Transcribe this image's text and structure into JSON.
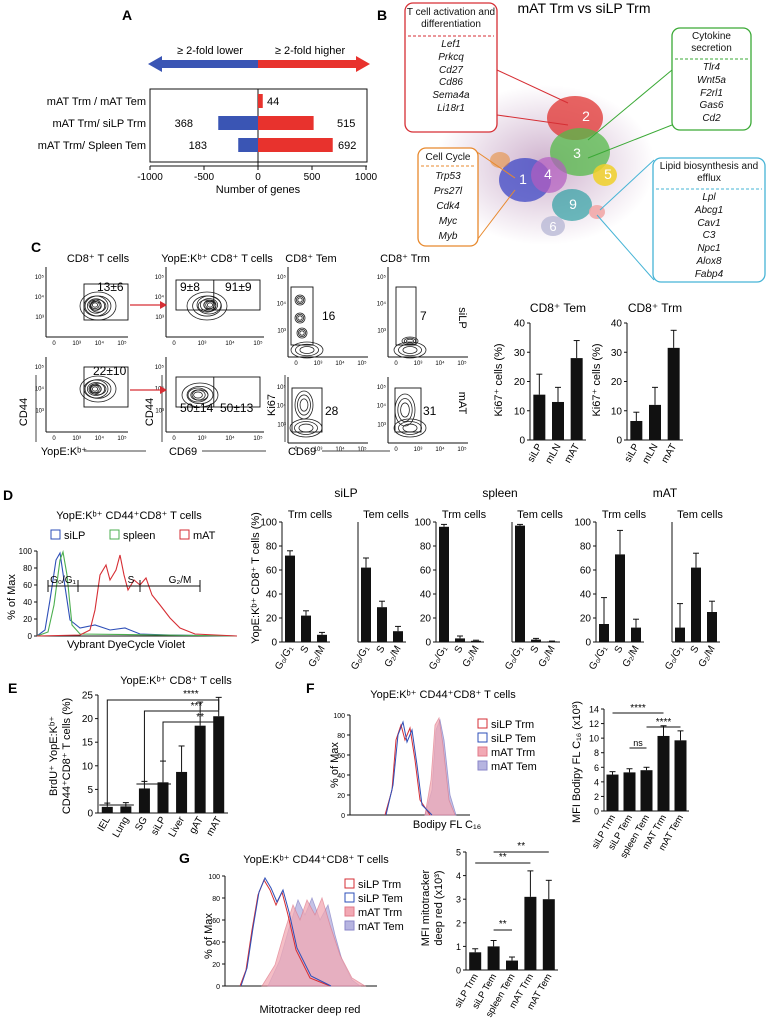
{
  "figure": {
    "panel_labels": [
      "A",
      "B",
      "C",
      "D",
      "E",
      "F",
      "G"
    ]
  },
  "panel_a": {
    "lower_label": "≥ 2-fold lower",
    "higher_label": "≥ 2-fold higher",
    "xlabel": "Number of genes",
    "xticks": [
      "-1000",
      "-500",
      "0",
      "500",
      "1000"
    ],
    "rows": [
      {
        "label": "mAT Trm / mAT Tem",
        "lower": 0,
        "higher": 44,
        "lower_text": "",
        "higher_text": "44"
      },
      {
        "label": "mAT Trm/ siLP Trm",
        "lower": 368,
        "higher": 515,
        "lower_text": "368",
        "higher_text": "515"
      },
      {
        "label": "mAT Trm/ Spleen Tem",
        "lower": 183,
        "higher": 692,
        "lower_text": "183",
        "higher_text": "692"
      }
    ],
    "colors": {
      "lower": "#3a55b4",
      "higher": "#e8322d"
    }
  },
  "panel_b": {
    "title": "mAT Trm vs siLP Trm",
    "clusters": [
      "1",
      "2",
      "3",
      "4",
      "5",
      "6",
      "9"
    ],
    "boxes": [
      {
        "title": "T cell activation and differentiation",
        "genes": [
          "Lef1",
          "Prkcq",
          "Cd27",
          "Cd86",
          "Sema4a",
          "Li18r1"
        ],
        "color": "#d62e34"
      },
      {
        "title": "Cytokine secretion",
        "genes": [
          "Tlr4",
          "Wnt5a",
          "F2rl1",
          "Gas6",
          "Cd2"
        ],
        "color": "#3aa935"
      },
      {
        "title": "Cell Cycle",
        "genes": [
          "Trp53",
          "Prs27l",
          "Cdk4",
          "Myc",
          "Myb"
        ],
        "color": "#e8892d"
      },
      {
        "title": "Lipid biosynthesis and efflux",
        "genes": [
          "Lpl",
          "Abcg1",
          "Cav1",
          "C3",
          "Npc1",
          "Alox8",
          "Fabp4"
        ],
        "color": "#46b4d6"
      }
    ]
  },
  "panel_c": {
    "col_titles": [
      "CD8⁺ T cells",
      "YopE:Kᵇ⁺ CD8⁺ T cells",
      "CD8⁺ Tem",
      "CD8⁺ Trm"
    ],
    "row_labels": [
      "siLP",
      "mAT"
    ],
    "gate_values": {
      "silp": [
        "13±6",
        "9±8",
        "91±9",
        "16",
        "7"
      ],
      "mat": [
        "22±10",
        "50±14",
        "50±13",
        "28",
        "31"
      ]
    },
    "axis_labels": {
      "cd44": "CD44",
      "yope": "YopE:Kᵇ⁺",
      "cd69": "CD69",
      "ki67": "Ki67"
    },
    "flow_ticks": [
      "0",
      "10³",
      "10⁴",
      "10⁵"
    ],
    "bar_titles": [
      "CD8⁺ Tem",
      "CD8⁺ Trm"
    ],
    "bar_ylabel": "Ki67⁺ cells (%)",
    "bar_yticks": [
      "0",
      "10",
      "20",
      "30",
      "40"
    ]
  },
  "panel_d": {
    "hist_title": "YopE:Kᵇ⁺ CD44⁺CD8⁺ T cells",
    "legend": [
      "siLP",
      "spleen",
      "mAT"
    ],
    "legend_colors": [
      "#2e4fb8",
      "#4caf50",
      "#d62e34"
    ],
    "phase_labels": [
      "G₀/G₁",
      "S",
      "G₂/M"
    ],
    "hist_xlabel": "Vybrant DyeCycle Violet",
    "hist_ylabel": "% of Max",
    "hist_yticks": [
      "0",
      "20",
      "40",
      "60",
      "80",
      "100"
    ],
    "bar_ylabel": "YopE:Kᵇ⁺ CD8⁺ T cells (%)",
    "bar_yticks": [
      "0",
      "20",
      "40",
      "60",
      "80",
      "100"
    ],
    "group_titles": [
      "siLP",
      "spleen",
      "mAT"
    ],
    "sub_titles": [
      "Trm cells",
      "Tem cells"
    ]
  },
  "panel_e": {
    "title": "YopE:Kᵇ⁺ CD8⁺ T cells",
    "ylabel_1": "BrdU⁺ YopE:Kᵇ⁺",
    "ylabel_2": "CD44⁺CD8⁺ T cells (%)",
    "yticks": [
      "0",
      "5",
      "10",
      "15",
      "20",
      "25"
    ],
    "sig": [
      "****",
      "***",
      "**"
    ]
  },
  "panel_f": {
    "hist_title": "YopE:Kᵇ⁺ CD44⁺CD8⁺ T cells",
    "legend": [
      "siLP Trm",
      "siLP Tem",
      "mAT Trm",
      "mAT Tem"
    ],
    "xlabel": "Bodipy FL C₁₆",
    "hist_ylabel": "% of Max",
    "hist_yticks": [
      "0",
      "20",
      "40",
      "60",
      "80",
      "100"
    ],
    "bar_ylabel": "MFI Bodipy FL C₁₆ (x10³)",
    "bar_yticks": [
      "0",
      "2",
      "4",
      "6",
      "8",
      "10",
      "12",
      "14"
    ],
    "sig": [
      "****",
      "****",
      "ns"
    ]
  },
  "panel_g": {
    "hist_title": "YopE:Kᵇ⁺ CD44⁺CD8⁺ T cells",
    "legend": [
      "siLP Trm",
      "siLP Tem",
      "mAT Trm",
      "mAT Tem"
    ],
    "xlabel": "Mitotracker deep red",
    "hist_ylabel": "% of Max",
    "hist_yticks": [
      "0",
      "20",
      "40",
      "60",
      "80",
      "100"
    ],
    "bar_ylabel_1": "MFI mitotracker",
    "bar_ylabel_2": "deep red (x10³)",
    "bar_yticks": [
      "0",
      "1",
      "2",
      "3",
      "4",
      "5"
    ],
    "sig": [
      "**",
      "**",
      "**"
    ]
  },
  "chart_data": [
    {
      "type": "bar",
      "panel": "A",
      "orientation": "horizontal",
      "categories": [
        "mAT Trm / mAT Tem",
        "mAT Trm/ siLP Trm",
        "mAT Trm/ Spleen Tem"
      ],
      "series": [
        {
          "name": "≥ 2-fold lower",
          "values": [
            0,
            -368,
            -183
          ]
        },
        {
          "name": "≥ 2-fold higher",
          "values": [
            44,
            515,
            692
          ]
        }
      ],
      "xlabel": "Number of genes",
      "xlim": [
        -1000,
        1000
      ]
    },
    {
      "type": "bar",
      "panel": "C",
      "title": "CD8⁺ Tem",
      "categories": [
        "siLP",
        "mLN",
        "mAT"
      ],
      "values": [
        15.5,
        13,
        28
      ],
      "errors": [
        7,
        5,
        6
      ],
      "ylabel": "Ki67⁺ cells (%)",
      "ylim": [
        0,
        40
      ]
    },
    {
      "type": "bar",
      "panel": "C",
      "title": "CD8⁺ Trm",
      "categories": [
        "siLP",
        "mLN",
        "mAT"
      ],
      "values": [
        6.5,
        12,
        31.5
      ],
      "errors": [
        3,
        6,
        6
      ],
      "ylabel": "Ki67⁺ cells (%)",
      "ylim": [
        0,
        40
      ]
    },
    {
      "type": "bar",
      "panel": "D",
      "title": "siLP Trm cells",
      "categories": [
        "G₀/G₁",
        "S",
        "G₂/M"
      ],
      "values": [
        72,
        22,
        6
      ],
      "errors": [
        4,
        4,
        2
      ],
      "ylim": [
        0,
        100
      ]
    },
    {
      "type": "bar",
      "panel": "D",
      "title": "siLP Tem cells",
      "categories": [
        "G₀/G₁",
        "S",
        "G₂/M"
      ],
      "values": [
        62,
        29,
        9
      ],
      "errors": [
        8,
        5,
        4
      ],
      "ylim": [
        0,
        100
      ]
    },
    {
      "type": "bar",
      "panel": "D",
      "title": "spleen Trm cells",
      "categories": [
        "G₀/G₁",
        "S",
        "G₂/M"
      ],
      "values": [
        96,
        3,
        1
      ],
      "errors": [
        2,
        2,
        0.5
      ],
      "ylim": [
        0,
        100
      ]
    },
    {
      "type": "bar",
      "panel": "D",
      "title": "spleen Tem cells",
      "categories": [
        "G₀/G₁",
        "S",
        "G₂/M"
      ],
      "values": [
        97,
        2,
        0.5
      ],
      "errors": [
        1,
        1,
        0.3
      ],
      "ylim": [
        0,
        100
      ]
    },
    {
      "type": "bar",
      "panel": "D",
      "title": "mAT Trm cells",
      "categories": [
        "G₀/G₁",
        "S",
        "G₂/M"
      ],
      "values": [
        15,
        73,
        12
      ],
      "errors": [
        22,
        20,
        7
      ],
      "ylim": [
        0,
        100
      ]
    },
    {
      "type": "bar",
      "panel": "D",
      "title": "mAT Tem cells",
      "categories": [
        "G₀/G₁",
        "S",
        "G₂/M"
      ],
      "values": [
        12,
        62,
        25
      ],
      "errors": [
        20,
        12,
        9
      ],
      "ylim": [
        0,
        100
      ]
    },
    {
      "type": "bar",
      "panel": "E",
      "categories": [
        "IEL",
        "Lung",
        "SG",
        "siLP",
        "Liver",
        "gAT",
        "mAT"
      ],
      "values": [
        1.3,
        1.4,
        5.2,
        6.5,
        8.7,
        18.5,
        20.5
      ],
      "errors": [
        0.8,
        0.8,
        1.5,
        4.5,
        5.5,
        5,
        4
      ],
      "ylim": [
        0,
        25
      ]
    },
    {
      "type": "bar",
      "panel": "F",
      "categories": [
        "siLP Trm",
        "siLP Tem",
        "spleen Tem",
        "mAT Trm",
        "mAT Tem"
      ],
      "values": [
        5,
        5.3,
        5.6,
        10.3,
        9.7
      ],
      "errors": [
        0.4,
        0.5,
        0.4,
        1.4,
        1.3
      ],
      "ylim": [
        0,
        14
      ]
    },
    {
      "type": "bar",
      "panel": "G",
      "categories": [
        "siLP Trm",
        "siLP Tem",
        "spleen Tem",
        "mAT Trm",
        "mAT Tem"
      ],
      "values": [
        0.75,
        1,
        0.4,
        3.1,
        3
      ],
      "errors": [
        0.15,
        0.25,
        0.15,
        1.1,
        0.8
      ],
      "ylim": [
        0,
        5
      ]
    }
  ]
}
